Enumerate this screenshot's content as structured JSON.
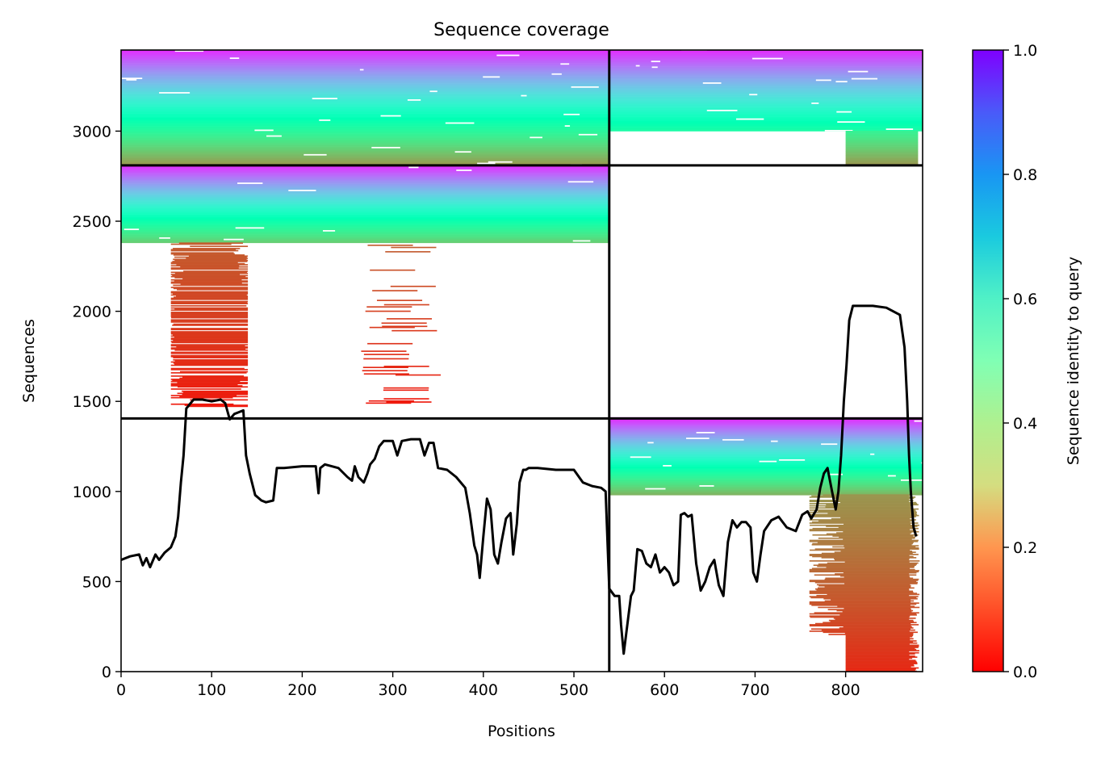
{
  "chart_data": {
    "type": "heatmap",
    "title": "Sequence coverage",
    "xlabel": "Positions",
    "ylabel": "Sequences",
    "colorbar_label": "Sequence identity to query",
    "colormap": "rainbow_r",
    "xlim": [
      0,
      885
    ],
    "ylim": [
      0,
      3450
    ],
    "x_ticks": [
      0,
      100,
      200,
      300,
      400,
      500,
      600,
      700,
      800
    ],
    "y_ticks": [
      0,
      500,
      1000,
      1500,
      2000,
      2500,
      3000
    ],
    "colorbar_ticks": [
      0.0,
      0.2,
      0.4,
      0.6,
      0.8,
      1.0
    ],
    "colorbar_tick_labels": [
      "0.0",
      "0.2",
      "0.4",
      "0.6",
      "0.8",
      "1.0"
    ],
    "grid": false,
    "chain_boundary_x": 539,
    "block_boundaries_y": [
      1405,
      2810
    ],
    "blocks": [
      {
        "name": "chain 1 (unpaired rows)",
        "x_range": [
          0,
          539
        ],
        "y_range": [
          0,
          1405
        ],
        "identity_range": [
          0,
          0
        ],
        "coverage": "empty"
      },
      {
        "name": "chain 2 (unpaired rows)",
        "x_range": [
          539,
          885
        ],
        "y_range": [
          0,
          1405
        ],
        "identity_range": [
          0.05,
          0.95
        ],
        "coverage": "dense above y=980 across all positions; only positions ~800-880 below"
      },
      {
        "name": "chain 1 (pair rows)",
        "x_range": [
          0,
          539
        ],
        "y_range": [
          1405,
          2810
        ],
        "identity_range": [
          0.05,
          0.95
        ],
        "coverage": "full width above y=2380; red fragments at positions ~70-140 between y=1470 and 2250"
      },
      {
        "name": "chain 2 (pair rows)",
        "x_range": [
          539,
          885
        ],
        "y_range": [
          1405,
          2810
        ],
        "identity_range": [
          0,
          0
        ],
        "coverage": "empty"
      },
      {
        "name": "paired chain 1",
        "x_range": [
          0,
          539
        ],
        "y_range": [
          2810,
          3450
        ],
        "identity_range": [
          0.2,
          0.95
        ],
        "coverage": "dense"
      },
      {
        "name": "paired chain 2",
        "x_range": [
          539,
          885
        ],
        "y_range": [
          2810,
          3450
        ],
        "identity_range": [
          0.2,
          0.95
        ],
        "coverage": "dense; gap y~2850-3000 except positions ~800-880"
      }
    ],
    "coverage_line": {
      "x": [
        0,
        10,
        20,
        24,
        28,
        32,
        38,
        42,
        48,
        55,
        60,
        63,
        66,
        69,
        72,
        80,
        90,
        100,
        110,
        115,
        120,
        125,
        130,
        135,
        138,
        142,
        148,
        155,
        160,
        168,
        172,
        180,
        200,
        215,
        218,
        220,
        225,
        240,
        250,
        255,
        258,
        262,
        268,
        272,
        275,
        280,
        285,
        290,
        300,
        305,
        310,
        320,
        330,
        335,
        340,
        345,
        350,
        360,
        370,
        380,
        385,
        390,
        393,
        396,
        400,
        404,
        408,
        412,
        416,
        420,
        425,
        430,
        433,
        437,
        440,
        444,
        447,
        450,
        460,
        480,
        500,
        510,
        520,
        530,
        535,
        539,
        545,
        550,
        552,
        555,
        560,
        563,
        566,
        570,
        575,
        580,
        585,
        590,
        595,
        600,
        605,
        610,
        615,
        618,
        622,
        626,
        630,
        635,
        640,
        645,
        650,
        655,
        660,
        665,
        670,
        675,
        680,
        685,
        690,
        695,
        698,
        702,
        706,
        710,
        718,
        726,
        735,
        745,
        752,
        758,
        762,
        768,
        772,
        776,
        780,
        785,
        789,
        792,
        795,
        798,
        801,
        804,
        808,
        815,
        830,
        845,
        860,
        865,
        868,
        870,
        872,
        875,
        878,
        880,
        884
      ],
      "y": [
        620,
        640,
        650,
        590,
        630,
        580,
        650,
        620,
        660,
        690,
        750,
        860,
        1050,
        1200,
        1460,
        1510,
        1510,
        1500,
        1510,
        1490,
        1400,
        1430,
        1440,
        1450,
        1200,
        1100,
        980,
        950,
        940,
        950,
        1130,
        1130,
        1140,
        1140,
        990,
        1130,
        1150,
        1130,
        1080,
        1060,
        1140,
        1080,
        1050,
        1100,
        1150,
        1180,
        1250,
        1280,
        1280,
        1200,
        1280,
        1290,
        1290,
        1200,
        1270,
        1270,
        1130,
        1120,
        1080,
        1020,
        880,
        700,
        650,
        520,
        750,
        960,
        900,
        650,
        600,
        720,
        850,
        880,
        650,
        820,
        1050,
        1120,
        1120,
        1130,
        1130,
        1120,
        1120,
        1050,
        1030,
        1020,
        1000,
        460,
        420,
        420,
        260,
        100,
        300,
        420,
        450,
        680,
        670,
        600,
        580,
        650,
        550,
        580,
        550,
        480,
        500,
        870,
        880,
        860,
        870,
        600,
        450,
        500,
        580,
        620,
        480,
        420,
        720,
        840,
        800,
        830,
        830,
        800,
        550,
        500,
        650,
        780,
        840,
        860,
        800,
        780,
        870,
        890,
        850,
        900,
        1020,
        1100,
        1130,
        1000,
        900,
        1000,
        1200,
        1500,
        1700,
        1950,
        2030,
        2030,
        2030,
        2020,
        1980,
        1800,
        1500,
        1200,
        1000,
        800,
        750
      ]
    }
  }
}
